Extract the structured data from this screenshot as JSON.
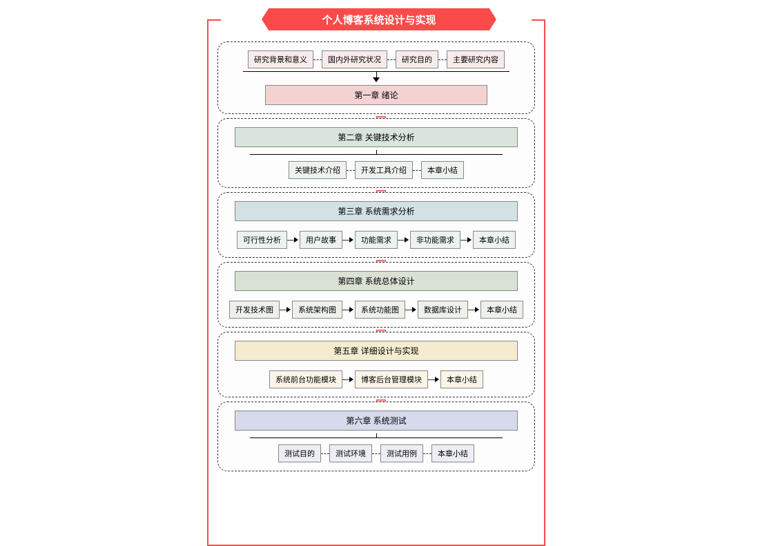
{
  "meta": {
    "type": "flowchart",
    "background_color": "#ffffff",
    "frame_color": "#fa4a4a",
    "dashed_border_color": "#333333",
    "dashed_border_radius": 14,
    "arrow_fill_color": "#f7a6a6",
    "arrow_border_color": "#cc5555",
    "box_border_color": "#888888",
    "font_family": "Microsoft YaHei",
    "title_fontsize": 15,
    "chapter_fontsize": 12,
    "sub_fontsize": 11
  },
  "title": "个人博客系统设计与实现",
  "sections": [
    {
      "id": "ch1",
      "chapter_label": "第一章 绪论",
      "chapter_bg": "#f4d2d2",
      "sub_bg": "#f8ebeb",
      "layout": "subs-above",
      "connector_from_subs": "solid-converge",
      "sub_connector": "dash",
      "subs": [
        "研究背景和意义",
        "国内外研究状况",
        "研究目的",
        "主要研究内容"
      ]
    },
    {
      "id": "ch2",
      "chapter_label": "第二章 关键技术分析",
      "chapter_bg": "#d9e4dc",
      "sub_bg": "#eef2ef",
      "layout": "subs-below",
      "connector_to_subs": "solid-diverge",
      "sub_connector": "dash",
      "subs": [
        "关键技术介绍",
        "开发工具介绍",
        "本章小结"
      ]
    },
    {
      "id": "ch3",
      "chapter_label": "第三章 系统需求分析",
      "chapter_bg": "#d3e1e4",
      "sub_bg": "#ecf1f2",
      "layout": "subs-below",
      "connector_to_subs": "none-inline",
      "sub_connector": "arrow",
      "subs": [
        "可行性分析",
        "用户故事",
        "功能需求",
        "非功能需求",
        "本章小结"
      ]
    },
    {
      "id": "ch4",
      "chapter_label": "第四章 系统总体设计",
      "chapter_bg": "#d9e0d4",
      "sub_bg": "#eef1eb",
      "layout": "subs-below",
      "connector_to_subs": "none-inline",
      "sub_connector": "arrow",
      "subs": [
        "开发技术图",
        "系统架构图",
        "系统功能图",
        "数据库设计",
        "本章小结"
      ]
    },
    {
      "id": "ch5",
      "chapter_label": "第五章 详细设计与实现",
      "chapter_bg": "#f5ecd0",
      "sub_bg": "#faf5e8",
      "layout": "subs-below",
      "connector_to_subs": "none-inline",
      "sub_connector": "arrow",
      "subs": [
        "系统前台功能模块",
        "博客后台管理模块",
        "本章小结"
      ]
    },
    {
      "id": "ch6",
      "chapter_label": "第六章 系统测试",
      "chapter_bg": "#d7d9ec",
      "sub_bg": "#ededf5",
      "layout": "subs-below",
      "connector_to_subs": "solid-diverge",
      "sub_connector": "dash",
      "subs": [
        "测试目的",
        "测试环境",
        "测试用例",
        "本章小结"
      ]
    }
  ]
}
